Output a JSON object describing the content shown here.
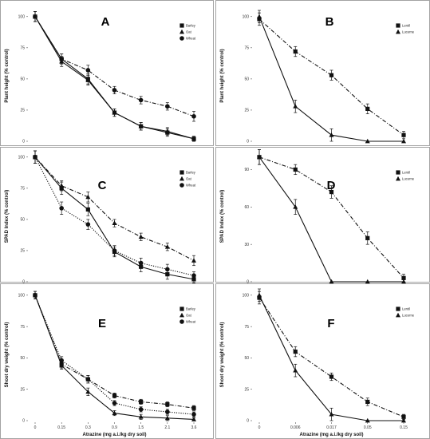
{
  "chart_data": [
    {
      "type": "line",
      "panel_label": "A",
      "title": "",
      "xlabel": "",
      "ylabel": "Plant height (% control)",
      "categories": [
        "0",
        "0.15",
        "0.3",
        "0.9",
        "1.5",
        "2.1",
        "3.6"
      ],
      "ylim": [
        0,
        105
      ],
      "yticks": [
        0,
        25,
        50,
        75,
        100
      ],
      "grid": false,
      "legend_position": "top-right",
      "series": [
        {
          "name": "Barley",
          "marker": "square",
          "line": "solid",
          "values": [
            100,
            66,
            50,
            23,
            12,
            7,
            2
          ],
          "errors": [
            4,
            4,
            4,
            3,
            3,
            3,
            2
          ]
        },
        {
          "name": "Oat",
          "marker": "triangle",
          "line": "solid",
          "values": [
            100,
            64,
            49,
            23,
            12,
            8,
            2
          ],
          "errors": [
            4,
            4,
            4,
            3,
            3,
            3,
            2
          ]
        },
        {
          "name": "Wheat",
          "marker": "circle",
          "line": "dashdot",
          "values": [
            100,
            66,
            57,
            41,
            33,
            28,
            20
          ],
          "errors": [
            4,
            4,
            4,
            3,
            3,
            3,
            4
          ]
        }
      ]
    },
    {
      "type": "line",
      "panel_label": "B",
      "title": "",
      "xlabel": "",
      "ylabel": "Plant height (% control)",
      "categories": [
        "0",
        "0.006",
        "0.017",
        "0.05",
        "0.15"
      ],
      "ylim": [
        0,
        105
      ],
      "yticks": [
        0,
        25,
        50,
        75,
        100
      ],
      "grid": false,
      "legend_position": "top-right",
      "series": [
        {
          "name": "Lentil",
          "marker": "square",
          "line": "dashdot",
          "values": [
            98,
            72,
            53,
            26,
            5
          ],
          "errors": [
            5,
            4,
            4,
            4,
            3
          ]
        },
        {
          "name": "Lucerne",
          "marker": "triangle",
          "line": "solid",
          "values": [
            100,
            28,
            5,
            0,
            0
          ],
          "errors": [
            5,
            5,
            5,
            0,
            0
          ]
        }
      ]
    },
    {
      "type": "line",
      "panel_label": "C",
      "title": "",
      "xlabel": "",
      "ylabel": "SPAD Index (% control)",
      "categories": [
        "0",
        "0.15",
        "0.3",
        "0.9",
        "1.5",
        "2.1",
        "3.6"
      ],
      "ylim": [
        0,
        105
      ],
      "yticks": [
        0,
        25,
        50,
        75,
        100
      ],
      "grid": false,
      "legend_position": "top-right",
      "series": [
        {
          "name": "Barley",
          "marker": "square",
          "line": "solid",
          "values": [
            100,
            75,
            58,
            24,
            12,
            6,
            2
          ],
          "errors": [
            5,
            5,
            5,
            4,
            4,
            4,
            3
          ]
        },
        {
          "name": "Oat",
          "marker": "triangle",
          "line": "dashdot",
          "values": [
            100,
            77,
            68,
            47,
            36,
            28,
            17
          ],
          "errors": [
            5,
            4,
            4,
            3,
            3,
            3,
            4
          ]
        },
        {
          "name": "Wheat",
          "marker": "circle",
          "line": "dotted",
          "values": [
            100,
            59,
            46,
            25,
            15,
            10,
            5
          ],
          "errors": [
            5,
            5,
            4,
            4,
            4,
            4,
            3
          ]
        }
      ]
    },
    {
      "type": "line",
      "panel_label": "D",
      "title": "",
      "xlabel": "",
      "ylabel": "SPAD Index (% control)",
      "categories": [
        "0",
        "0.006",
        "0.017",
        "0.05",
        "0.15"
      ],
      "ylim": [
        0,
        105
      ],
      "yticks": [
        0,
        30,
        60,
        90
      ],
      "grid": false,
      "legend_position": "top-right",
      "series": [
        {
          "name": "Lentil",
          "marker": "square",
          "line": "dashdot",
          "values": [
            100,
            90,
            72,
            35,
            3
          ],
          "errors": [
            6,
            4,
            5,
            5,
            3
          ]
        },
        {
          "name": "Lucerne",
          "marker": "triangle",
          "line": "solid",
          "values": [
            100,
            60,
            0,
            0,
            0
          ],
          "errors": [
            6,
            6,
            0,
            0,
            0
          ]
        }
      ]
    },
    {
      "type": "line",
      "panel_label": "E",
      "title": "",
      "xlabel": "Atrazine (mg a.i./kg dry soil)",
      "ylabel": "Shoot dry weight (% control)",
      "categories": [
        "0",
        "0.15",
        "0.3",
        "0.9",
        "1.5",
        "2.1",
        "3.6"
      ],
      "ylim": [
        0,
        105
      ],
      "yticks": [
        0,
        25,
        50,
        75,
        100
      ],
      "grid": false,
      "legend_position": "top-right",
      "series": [
        {
          "name": "Barley",
          "marker": "square",
          "line": "dashdot",
          "values": [
            100,
            45,
            33,
            20,
            15,
            13,
            10
          ],
          "errors": [
            3,
            3,
            3,
            2,
            2,
            2,
            2
          ]
        },
        {
          "name": "Oat",
          "marker": "triangle",
          "line": "solid",
          "values": [
            100,
            44,
            23,
            6,
            3,
            2,
            1
          ],
          "errors": [
            3,
            3,
            3,
            2,
            2,
            2,
            1
          ]
        },
        {
          "name": "Wheat",
          "marker": "circle",
          "line": "dotted",
          "values": [
            100,
            48,
            33,
            14,
            9,
            7,
            5
          ],
          "errors": [
            3,
            3,
            3,
            2,
            2,
            2,
            2
          ]
        }
      ]
    },
    {
      "type": "line",
      "panel_label": "F",
      "title": "",
      "xlabel": "Atrazine (mg a.i./kg dry soil)",
      "ylabel": "Shoot dry weight (% control)",
      "categories": [
        "0",
        "0.006",
        "0.017",
        "0.05",
        "0.15"
      ],
      "ylim": [
        0,
        105
      ],
      "yticks": [
        0,
        25,
        50,
        75,
        100
      ],
      "grid": false,
      "legend_position": "top-right",
      "series": [
        {
          "name": "Lentil",
          "marker": "square",
          "line": "dashdot",
          "values": [
            98,
            55,
            35,
            15,
            3
          ],
          "errors": [
            5,
            4,
            3,
            3,
            2
          ]
        },
        {
          "name": "Lucerne",
          "marker": "triangle",
          "line": "solid",
          "values": [
            100,
            40,
            5,
            0,
            0
          ],
          "errors": [
            5,
            5,
            5,
            0,
            0
          ]
        }
      ]
    }
  ],
  "colors": {
    "panel_border": "#8c8c8c",
    "ink": "#111111",
    "background": "#ffffff"
  }
}
